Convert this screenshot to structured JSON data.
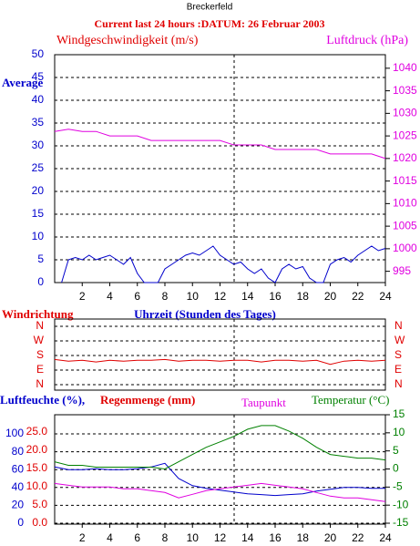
{
  "chart_data": [
    {
      "type": "line",
      "station": "Breckerfeld",
      "title": "Current last 24 hours :DATUM: 26 Februar 2003",
      "annotation": "Average",
      "xlim": [
        0,
        24
      ],
      "xticks": [
        2,
        4,
        6,
        8,
        10,
        12,
        14,
        16,
        18,
        20,
        22,
        24
      ],
      "ylim": [
        0,
        50
      ],
      "yticks": [
        0,
        5,
        10,
        15,
        20,
        25,
        30,
        35,
        40,
        45,
        50
      ],
      "ytick_color": "#0000cc",
      "y2lim": [
        992.5,
        1043
      ],
      "y2ticks": [
        995,
        1000,
        1005,
        1010,
        1015,
        1020,
        1025,
        1030,
        1035,
        1040
      ],
      "y2tick_color": "#e000e0",
      "grid": true,
      "series": [
        {
          "name": "Windgeschwindigkeit (m/s)",
          "color": "#0000cc",
          "x": [
            0.5,
            1,
            1.5,
            2,
            2.5,
            3,
            3.5,
            4,
            4.5,
            5,
            5.5,
            6,
            6.5,
            7,
            7.5,
            8,
            8.5,
            9,
            9.5,
            10,
            10.5,
            11,
            11.5,
            12,
            12.5,
            13,
            13.5,
            14,
            14.5,
            15,
            15.5,
            16,
            16.5,
            17,
            17.5,
            18,
            18.5,
            19,
            19.5,
            20,
            20.5,
            21,
            21.5,
            22,
            22.5,
            23,
            23.5,
            24
          ],
          "values": [
            0,
            5,
            5.5,
            5,
            6,
            5,
            5.5,
            6,
            5,
            4,
            5.5,
            2,
            0,
            0,
            0,
            3,
            4,
            5,
            6,
            6.5,
            6,
            7,
            8,
            6,
            5,
            4,
            4.5,
            3,
            2,
            3,
            1,
            0,
            3,
            4,
            3,
            3.5,
            1,
            0,
            0,
            4,
            5,
            5.5,
            4.5,
            6,
            7,
            8,
            7,
            7.5
          ]
        },
        {
          "name": "Luftdruck (hPa)",
          "color": "#e000e0",
          "axis": "y2",
          "x": [
            0,
            1,
            2,
            3,
            4,
            5,
            6,
            7,
            8,
            9,
            10,
            11,
            12,
            13,
            14,
            15,
            16,
            17,
            18,
            19,
            20,
            21,
            22,
            23,
            24
          ],
          "values": [
            1026,
            1026.5,
            1026,
            1026,
            1025,
            1025,
            1025,
            1024,
            1024,
            1024,
            1024,
            1024,
            1024,
            1023,
            1023,
            1023,
            1022,
            1022,
            1022,
            1022,
            1021,
            1021,
            1021,
            1021,
            1020
          ]
        }
      ]
    },
    {
      "type": "line",
      "y_label": "Windrichtung",
      "x_label": "Uhrzeit (Stunden des Tages)",
      "xlim": [
        0,
        24
      ],
      "ylim": [
        -34,
        405
      ],
      "yticks": [
        {
          "value": 360,
          "label": "N"
        },
        {
          "value": 270,
          "label": "W"
        },
        {
          "value": 180,
          "label": "S"
        },
        {
          "value": 90,
          "label": "E"
        },
        {
          "value": 0,
          "label": "N"
        }
      ],
      "ytick_color": "#e00000",
      "y2tick_color": "#e00000",
      "grid": true,
      "color": "#e00000",
      "x": [
        0,
        1,
        2,
        3,
        4,
        5,
        6,
        7,
        8,
        9,
        10,
        11,
        12,
        13,
        14,
        15,
        16,
        17,
        18,
        19,
        20,
        21,
        22,
        23,
        24
      ],
      "values": [
        155,
        145,
        150,
        140,
        150,
        145,
        150,
        150,
        155,
        145,
        150,
        150,
        145,
        150,
        150,
        140,
        150,
        150,
        145,
        150,
        125,
        145,
        150,
        145,
        150
      ]
    },
    {
      "type": "line",
      "y3_label": "Regenmenge (mm)",
      "xlim": [
        0,
        24
      ],
      "xticks": [
        2,
        4,
        6,
        8,
        10,
        12,
        14,
        16,
        18,
        20,
        22,
        24
      ],
      "ylim": [
        -1,
        121.4
      ],
      "yticks": [
        0,
        20,
        40,
        60,
        80,
        100
      ],
      "ytick_color": "#0000cc",
      "y3lim": [
        -0.25,
        29.75
      ],
      "y3ticks": [
        {
          "value": 0,
          "label": "0.0"
        },
        {
          "value": 5,
          "label": "5.0"
        },
        {
          "value": 10,
          "label": "10.0"
        },
        {
          "value": 15,
          "label": "15.0"
        },
        {
          "value": 20,
          "label": "20.0"
        },
        {
          "value": 25,
          "label": "25.0"
        }
      ],
      "y3tick_color": "#e00000",
      "y2lim": [
        -15.25,
        15
      ],
      "y2ticks": [
        15,
        10,
        5,
        0,
        -5,
        -10,
        -15
      ],
      "y2tick_color": "#008000",
      "grid": true,
      "x": [
        0,
        1,
        2,
        3,
        4,
        5,
        6,
        7,
        8,
        9,
        10,
        11,
        12,
        13,
        14,
        15,
        16,
        17,
        18,
        19,
        20,
        21,
        22,
        23,
        24
      ],
      "series": [
        {
          "name": "Luftfeuchte (%),",
          "color": "#0000cc",
          "values": [
            63,
            60,
            60,
            61,
            60,
            60,
            61,
            63,
            67,
            50,
            42,
            39,
            37,
            35,
            33,
            32,
            31,
            32,
            33,
            36,
            38,
            40,
            40,
            39,
            39
          ]
        },
        {
          "name": "Taupunkt",
          "color": "#e000e0",
          "axis": "y2",
          "values": [
            -4,
            -4.5,
            -5,
            -5,
            -5,
            -5.5,
            -5.5,
            -6,
            -6.5,
            -8,
            -7,
            -6,
            -5.5,
            -5,
            -4.5,
            -4,
            -4.5,
            -5,
            -5.5,
            -6.5,
            -7.5,
            -8,
            -8,
            -8.5,
            -9
          ]
        },
        {
          "name": "Temperatur (°C)",
          "color": "#008000",
          "axis": "y2",
          "values": [
            2,
            1,
            1,
            0.5,
            0.5,
            0.5,
            0.5,
            0.5,
            0,
            2,
            4,
            6,
            7.5,
            9,
            11,
            12,
            12,
            10.5,
            8.5,
            6,
            4,
            3.5,
            3,
            3,
            2.5
          ]
        }
      ]
    }
  ]
}
